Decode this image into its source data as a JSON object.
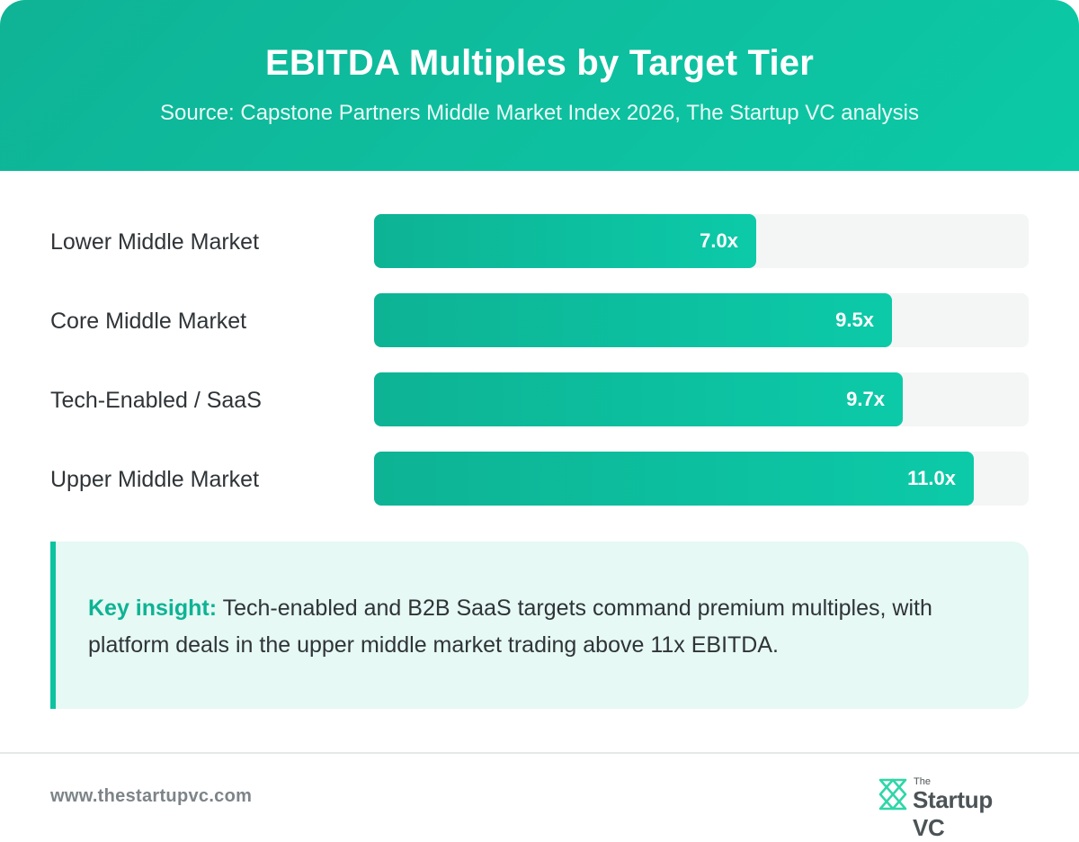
{
  "header": {
    "title": "EBITDA Multiples by Target Tier",
    "subtitle": "Source: Capstone Partners Middle Market Index 2026, The Startup VC analysis"
  },
  "chart_data": {
    "type": "bar",
    "orientation": "horizontal",
    "title": "EBITDA Multiples by Target Tier",
    "categories": [
      "Lower Middle Market",
      "Core Middle Market",
      "Tech-Enabled / SaaS",
      "Upper Middle Market"
    ],
    "values": [
      7.0,
      9.5,
      9.7,
      11.0
    ],
    "value_labels": [
      "7.0x",
      "9.5x",
      "9.7x",
      "11.0x"
    ],
    "xlim": [
      0,
      12
    ],
    "unit": "x",
    "grid": false,
    "legend": "none",
    "bar_color": "#0cc3a0",
    "track_color": "#f4f5f5"
  },
  "insight": {
    "key_label": "Key insight:",
    "text": " Tech-enabled and B2B SaaS targets command premium multiples, with platform deals in the upper middle market trading above 11x EBITDA."
  },
  "footer": {
    "url": "www.thestartupvc.com",
    "logo_the": "The",
    "logo_name": "Startup VC",
    "logo_icon": "startup-vc-mark-icon"
  },
  "colors": {
    "accent": "#0cc3a0",
    "header_start": "#0fb396",
    "header_end": "#0ccaa6",
    "insight_bg": "#e6f9f4"
  }
}
